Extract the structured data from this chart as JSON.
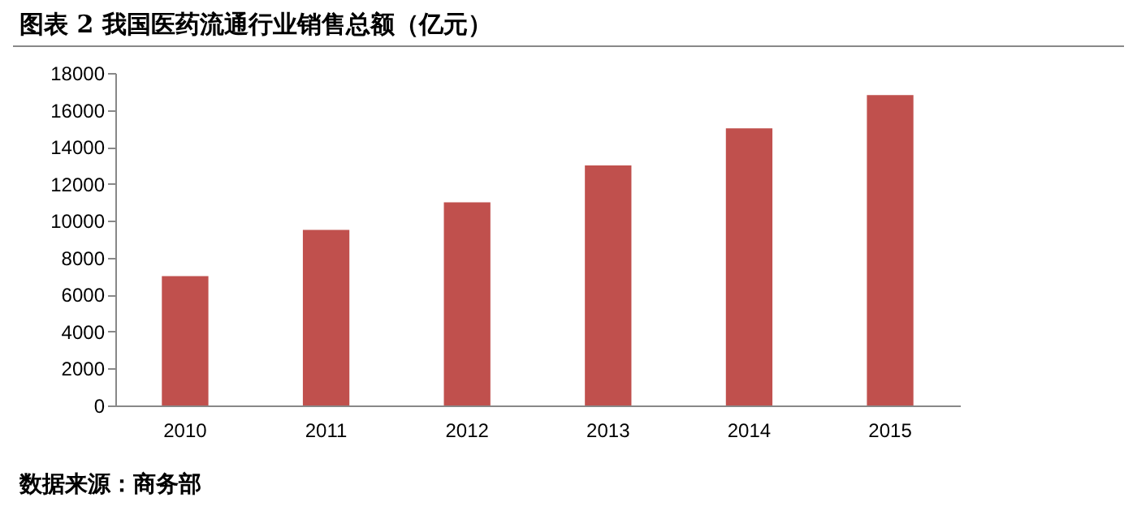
{
  "chart_data": {
    "type": "bar",
    "title": "图表 2  我国医药流通行业销售总额（亿元）",
    "categories": [
      "2010",
      "2011",
      "2012",
      "2013",
      "2014",
      "2015"
    ],
    "values": [
      7000,
      9500,
      11000,
      13000,
      15000,
      16800
    ],
    "color": "#c0504d",
    "ylim": [
      0,
      18000
    ],
    "yticks": [
      0,
      2000,
      4000,
      6000,
      8000,
      10000,
      12000,
      14000,
      16000,
      18000
    ],
    "grid": false,
    "annotations": [
      "数据来源：商务部"
    ]
  }
}
